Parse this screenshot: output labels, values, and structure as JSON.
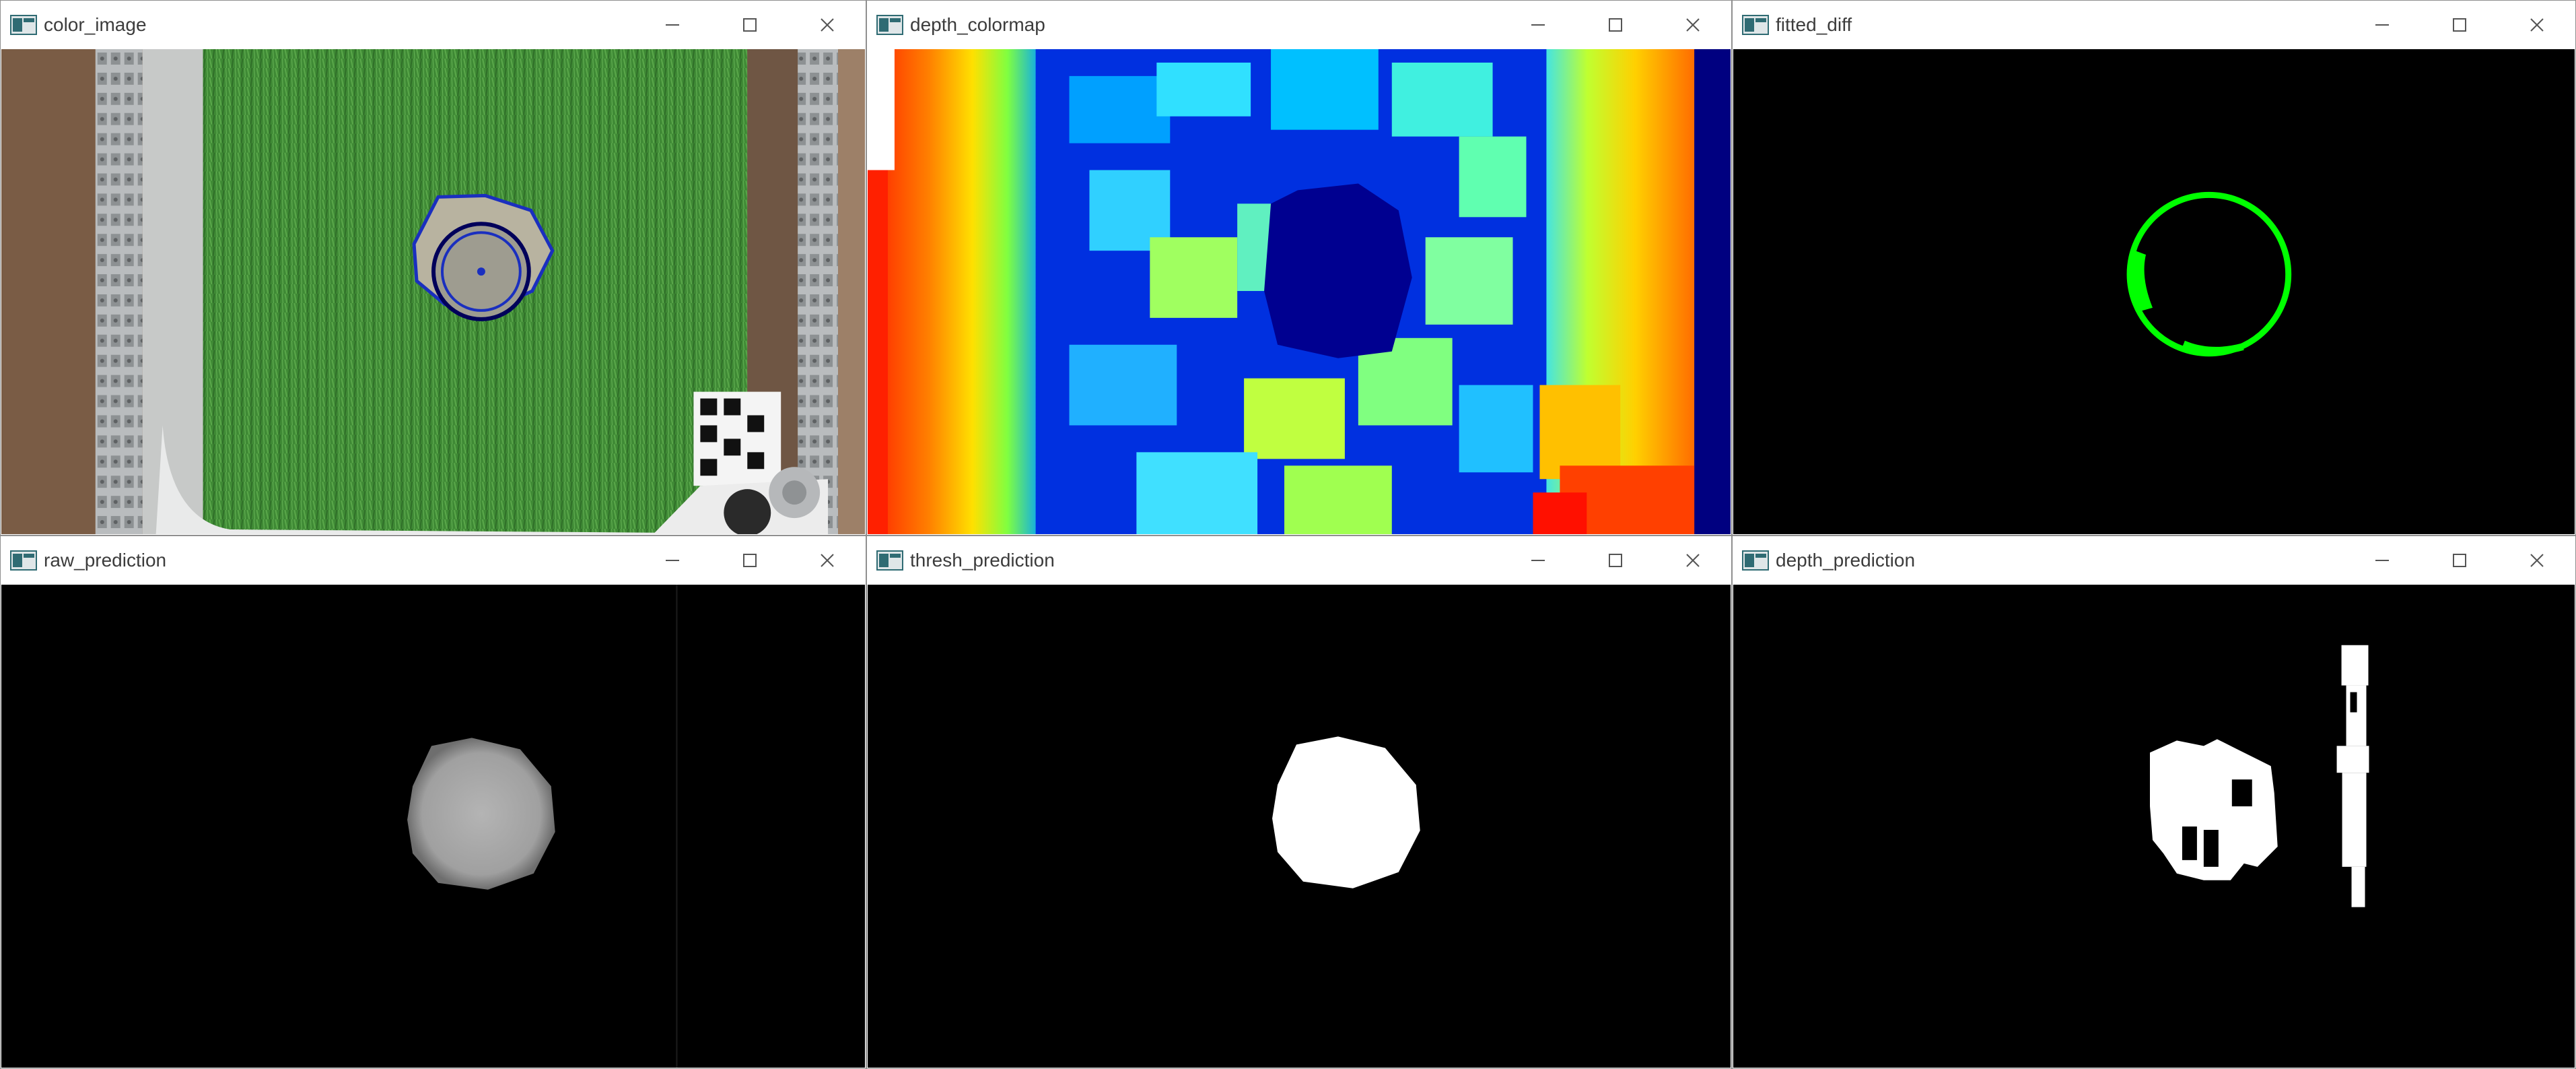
{
  "windows": [
    {
      "title": "color_image",
      "image": "color image with detected circles"
    },
    {
      "title": "depth_colormap",
      "image": "depth colormap"
    },
    {
      "title": "fitted_diff",
      "image": "fitted difference ring"
    },
    {
      "title": "raw_prediction",
      "image": "raw prediction blob"
    },
    {
      "title": "thresh_prediction",
      "image": "thresholded prediction blob"
    },
    {
      "title": "depth_prediction",
      "image": "depth prediction mask"
    }
  ],
  "controls": {
    "minimize": "minimize-icon",
    "maximize": "maximize-icon",
    "close": "close-icon"
  },
  "colors": {
    "titlebar": "#ffffff",
    "title_text": "#3c3c3c",
    "fitted_ring": "#00ff00",
    "circle_outer": "#1a2fbf",
    "circle_inner": "#00005a"
  }
}
